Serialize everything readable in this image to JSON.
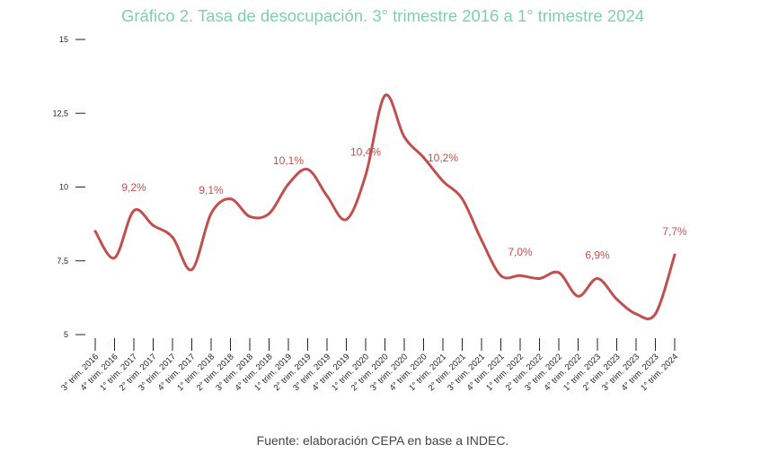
{
  "title": "Gráfico 2. Tasa de desocupación. 3° trimestre 2016 a 1° trimestre 2024",
  "source": "Fuente: elaboración CEPA en base a INDEC.",
  "colors": {
    "line": "#c0504d",
    "title": "#7fcfac",
    "axis": "#222222"
  },
  "chart_data": {
    "type": "line",
    "title": "Gráfico 2. Tasa de desocupación. 3° trimestre 2016 a 1° trimestre 2024",
    "xlabel": "",
    "ylabel": "",
    "ylim": [
      5,
      15
    ],
    "yticks": [
      "5",
      "7,5",
      "10",
      "12,5",
      "15"
    ],
    "yticks_values": [
      5,
      7.5,
      10,
      12.5,
      15
    ],
    "grid": false,
    "categories": [
      "3° trim. 2016",
      "4° trim. 2016",
      "1° trim. 2017",
      "2° trim. 2017",
      "3° trim. 2017",
      "4° trim. 2017",
      "1° trim. 2018",
      "2° trim. 2018",
      "3° trim. 2018",
      "4° trim. 2018",
      "1° trim. 2019",
      "2° trim. 2019",
      "3° trim. 2019",
      "4° trim. 2019",
      "1° trim. 2020",
      "2° trim. 2020",
      "3° trim. 2020",
      "4° trim. 2020",
      "1° trim. 2021",
      "2° trim. 2021",
      "3° trim. 2021",
      "4° trim. 2021",
      "1° trim. 2022",
      "2° trim. 2022",
      "3° trim. 2022",
      "4° trim. 2022",
      "1° trim. 2023",
      "2° trim. 2023",
      "3° trim. 2023",
      "4° trim. 2023",
      "1° trim. 2024"
    ],
    "series": [
      {
        "values": [
          8.5,
          7.6,
          9.2,
          8.7,
          8.3,
          7.2,
          9.1,
          9.6,
          9.0,
          9.1,
          10.1,
          10.6,
          9.7,
          8.9,
          10.4,
          13.1,
          11.7,
          11.0,
          10.2,
          9.6,
          8.2,
          7.0,
          7.0,
          6.9,
          7.1,
          6.3,
          6.9,
          6.2,
          5.7,
          5.7,
          7.7
        ]
      }
    ],
    "data_labels": [
      {
        "index": 2,
        "text": "9,2%"
      },
      {
        "index": 6,
        "text": "9,1%"
      },
      {
        "index": 10,
        "text": "10,1%"
      },
      {
        "index": 14,
        "text": "10,4%"
      },
      {
        "index": 18,
        "text": "10,2%"
      },
      {
        "index": 22,
        "text": "7,0%"
      },
      {
        "index": 26,
        "text": "6,9%"
      },
      {
        "index": 30,
        "text": "7,7%"
      }
    ]
  }
}
